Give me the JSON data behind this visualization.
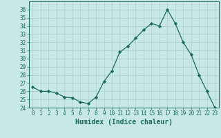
{
  "x": [
    0,
    1,
    2,
    3,
    4,
    5,
    6,
    7,
    8,
    9,
    10,
    11,
    12,
    13,
    14,
    15,
    16,
    17,
    18,
    19,
    20,
    21,
    22,
    23
  ],
  "y": [
    26.5,
    26.0,
    26.0,
    25.8,
    25.3,
    25.2,
    24.7,
    24.5,
    25.3,
    27.2,
    28.5,
    30.8,
    31.5,
    32.5,
    33.5,
    34.3,
    34.0,
    36.0,
    34.3,
    32.0,
    30.5,
    28.0,
    26.0,
    24.0
  ],
  "line_color": "#1a6b5a",
  "marker": "D",
  "marker_size": 2.2,
  "bg_color": "#c8e8e8",
  "grid_color": "#aacccc",
  "xlabel": "Humidex (Indice chaleur)",
  "xlim": [
    -0.5,
    23.5
  ],
  "ylim": [
    24,
    37
  ],
  "yticks": [
    24,
    25,
    26,
    27,
    28,
    29,
    30,
    31,
    32,
    33,
    34,
    35,
    36
  ],
  "xticks": [
    0,
    1,
    2,
    3,
    4,
    5,
    6,
    7,
    8,
    9,
    10,
    11,
    12,
    13,
    14,
    15,
    16,
    17,
    18,
    19,
    20,
    21,
    22,
    23
  ],
  "tick_color": "#1a6b5a",
  "xlabel_fontsize": 7,
  "tick_fontsize": 5.5
}
